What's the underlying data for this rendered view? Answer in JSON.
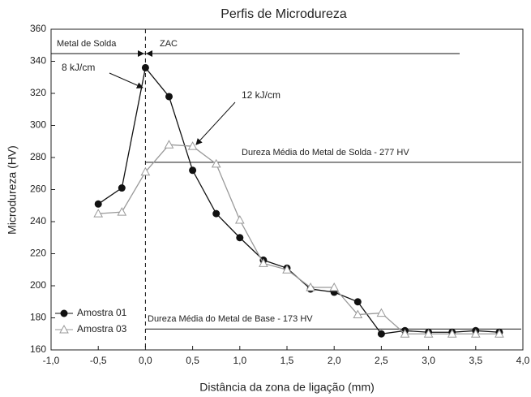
{
  "chart_data": {
    "type": "line",
    "title": "Perfis de Microdureza",
    "x_label": "Distância da zona de ligação (mm)",
    "y_label": "Microdureza (HV)",
    "x": [
      -0.5,
      -0.25,
      0,
      0.25,
      0.5,
      0.75,
      1.0,
      1.25,
      1.5,
      1.75,
      2.0,
      2.25,
      2.5,
      2.75,
      3.0,
      3.25,
      3.5,
      3.75
    ],
    "series": [
      {
        "name": "Amostra 01",
        "color": "#111111",
        "values": [
          251,
          261,
          336,
          318,
          272,
          245,
          230,
          216,
          211,
          198,
          196,
          190,
          170,
          172,
          171,
          171,
          172,
          171
        ]
      },
      {
        "name": "Amostra 03",
        "color": "#999999",
        "values": [
          245,
          246,
          271,
          288,
          287,
          276,
          241,
          214,
          210,
          199,
          199,
          182,
          183,
          170,
          170,
          170,
          170,
          170
        ]
      }
    ],
    "xlim": [
      -1.0,
      4.0
    ],
    "ylim": [
      160,
      360
    ],
    "xticks": [
      {
        "value": -1.0,
        "label": "-1,0"
      },
      {
        "value": -0.5,
        "label": "-0,5"
      },
      {
        "value": 0,
        "label": "0,0"
      },
      {
        "value": 0.5,
        "label": "0,5"
      },
      {
        "value": 1.0,
        "label": "1,0"
      },
      {
        "value": 1.5,
        "label": "1,5"
      },
      {
        "value": 2.0,
        "label": "2,0"
      },
      {
        "value": 2.5,
        "label": "2,5"
      },
      {
        "value": 3.0,
        "label": "3,0"
      },
      {
        "value": 3.5,
        "label": "3,5"
      },
      {
        "value": 4.0,
        "label": "4,0"
      }
    ],
    "yticks": [
      160,
      180,
      200,
      220,
      240,
      260,
      280,
      300,
      320,
      340,
      360
    ],
    "reference_lines": [
      {
        "value": 277,
        "label": "Dureza Média do Metal de Solda - 277 HV"
      },
      {
        "value": 173,
        "label": "Dureza Média do Metal de Base - 173 HV"
      }
    ],
    "annotations": [
      "Metal de Solda",
      "ZAC",
      "8 kJ/cm",
      "12 kJ/cm"
    ],
    "legend": "lower left"
  }
}
